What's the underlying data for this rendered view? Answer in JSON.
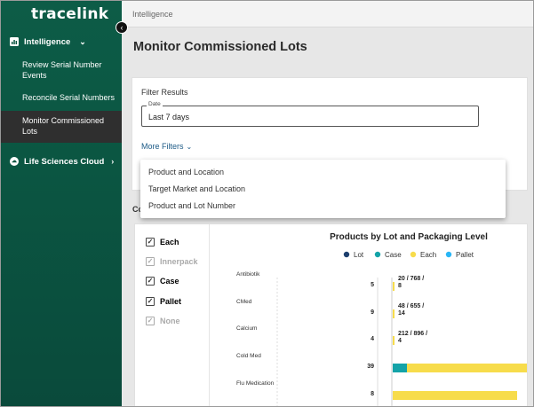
{
  "sidebar": {
    "logo": "tracelink",
    "sections": [
      {
        "label": "Intelligence",
        "expanded": true
      },
      {
        "label": "Life Sciences Cloud",
        "expanded": false
      }
    ],
    "items": [
      {
        "label": "Review Serial Number Events"
      },
      {
        "label": "Reconcile Serial Numbers"
      },
      {
        "label": "Monitor Commissioned Lots",
        "active": true
      }
    ]
  },
  "breadcrumb": "Intelligence",
  "page_title": "Monitor Commissioned Lots",
  "filters": {
    "title": "Filter Results",
    "date_label": "Date",
    "date_value": "Last 7 days",
    "more_filters": "More Filters",
    "dropdown_options": [
      "Product and Location",
      "Target Market and Location",
      "Product and Lot Number"
    ]
  },
  "section_label_partial": "Co",
  "packaging_checkboxes": [
    {
      "label": "Each",
      "checked": true,
      "enabled": true
    },
    {
      "label": "Innerpack",
      "checked": true,
      "enabled": false
    },
    {
      "label": "Case",
      "checked": true,
      "enabled": true
    },
    {
      "label": "Pallet",
      "checked": true,
      "enabled": true
    },
    {
      "label": "None",
      "checked": true,
      "enabled": false
    }
  ],
  "colors": {
    "lot": "#1d3f6e",
    "case": "#14a3a8",
    "each": "#f7dc4b",
    "pallet": "#29b6f6",
    "sidebar": "#0b5642"
  },
  "chart_data": {
    "type": "bar",
    "title": "Products by Lot and Packaging Level",
    "legend": [
      "Lot",
      "Case",
      "Each",
      "Pallet"
    ],
    "legend_placement": "top",
    "categories": [
      "Antibiotik",
      "CMed",
      "Calcium",
      "Cold Med",
      "Flu Medication"
    ],
    "lot_counts": [
      5,
      9,
      4,
      39,
      8
    ],
    "data_labels": [
      "20 / 768 / 8",
      "48 / 655 / 14",
      "212 / 896 / 4",
      "",
      ""
    ],
    "series": [
      {
        "name": "Case",
        "values": [
          0,
          0,
          0,
          160,
          0
        ]
      },
      {
        "name": "Each",
        "values": [
          20,
          20,
          20,
          1400,
          1400
        ]
      }
    ],
    "xlim": [
      0,
      1600
    ]
  }
}
